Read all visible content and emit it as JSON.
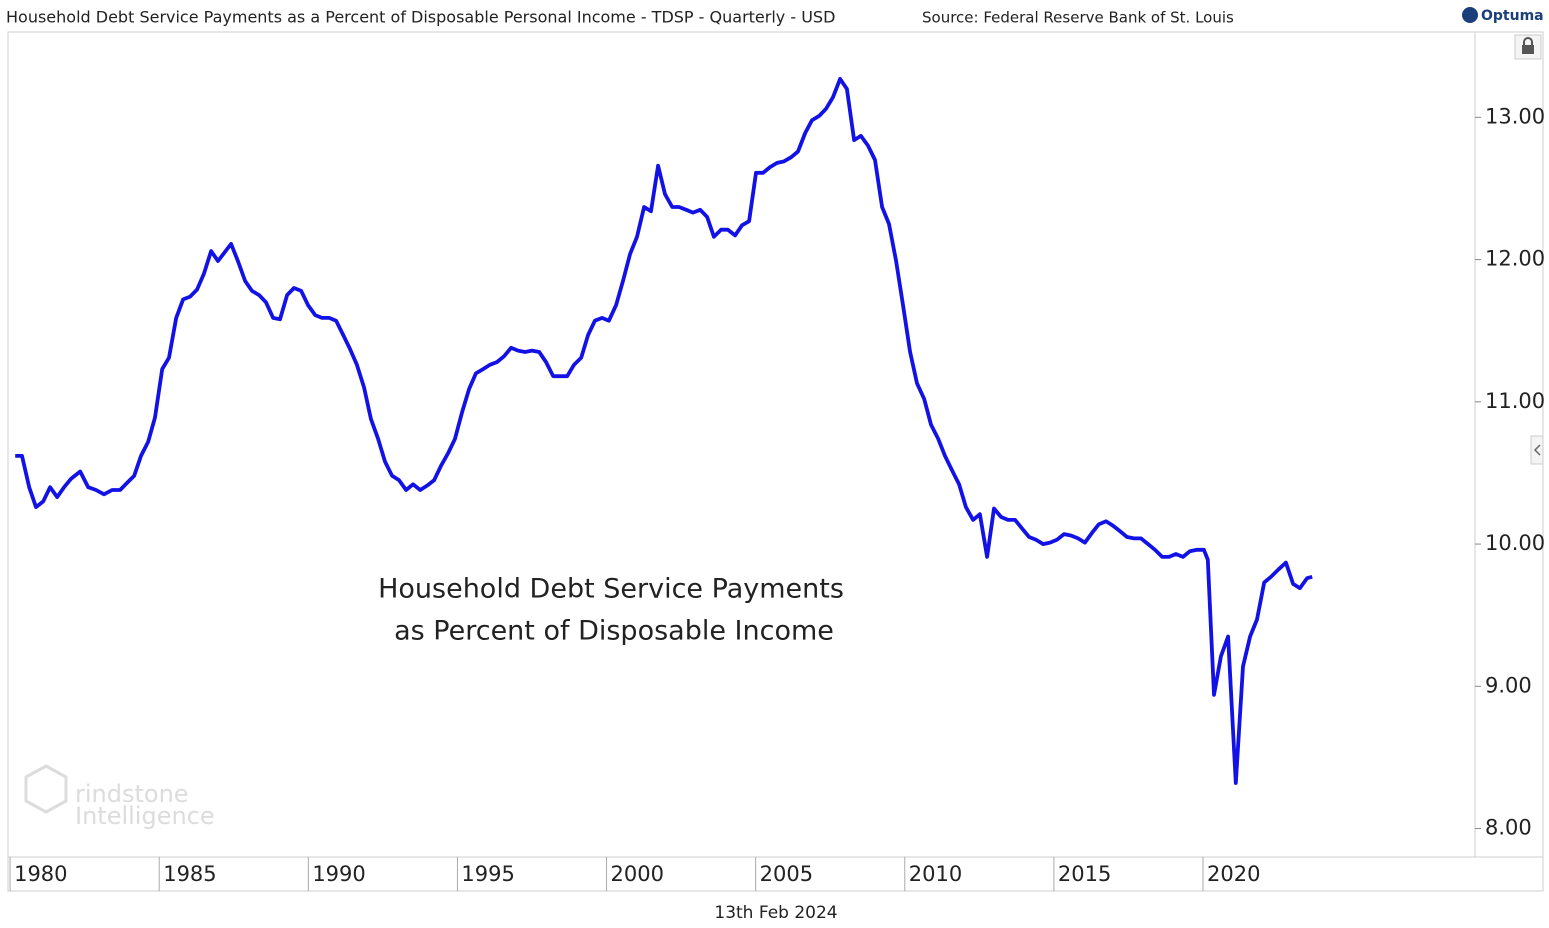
{
  "chart_data": {
    "type": "line",
    "title": "Household Debt Service Payments as a Percent of Disposable Personal Income - TDSP - Quarterly - USD",
    "source": "Source: Federal Reserve Bank of St. Louis",
    "brand": "Optuma",
    "annotation": [
      "Household Debt Service Payments",
      "as Percent of Disposable Income"
    ],
    "watermark": [
      "rindstone",
      "Intelligence"
    ],
    "date_label": "13th Feb 2024",
    "color": "#1212e6",
    "xlim": [
      1979.93,
      2029.12
    ],
    "ylim": [
      7.8,
      13.6
    ],
    "xticks": [
      1980,
      1985,
      1990,
      1995,
      2000,
      2005,
      2010,
      2015,
      2020
    ],
    "yticks": [
      {
        "value": 8,
        "label": "8.00"
      },
      {
        "value": 9,
        "label": "9.00"
      },
      {
        "value": 10,
        "label": "10.00"
      },
      {
        "value": 11,
        "label": "11.00"
      },
      {
        "value": 12,
        "label": "12.00"
      },
      {
        "value": 13,
        "label": "13.00"
      }
    ],
    "x": [
      1980.17,
      1980.4,
      1980.64,
      1980.87,
      1981.11,
      1981.34,
      1981.58,
      1981.81,
      1982.05,
      1982.35,
      1982.62,
      1982.88,
      1983.15,
      1983.42,
      1983.69,
      1983.92,
      1984.16,
      1984.39,
      1984.63,
      1984.86,
      1985.1,
      1985.33,
      1985.57,
      1985.8,
      1986.04,
      1986.27,
      1986.5,
      1986.74,
      1986.97,
      1987.41,
      1987.64,
      1987.88,
      1988.11,
      1988.35,
      1988.58,
      1988.82,
      1989.05,
      1989.29,
      1989.52,
      1989.76,
      1989.99,
      1990.23,
      1990.46,
      1990.7,
      1990.93,
      1991.17,
      1991.4,
      1991.63,
      1991.87,
      1992.1,
      1992.34,
      1992.57,
      1992.81,
      1993.04,
      1993.28,
      1993.51,
      1993.75,
      1993.98,
      1994.22,
      1994.45,
      1994.69,
      1994.92,
      1995.16,
      1995.39,
      1995.62,
      1995.86,
      1996.09,
      1996.33,
      1996.56,
      1996.8,
      1997.03,
      1997.27,
      1997.5,
      1997.74,
      1997.97,
      1998.21,
      1998.44,
      1998.68,
      1998.91,
      1999.15,
      1999.38,
      1999.61,
      1999.85,
      2000.08,
      2000.32,
      2000.55,
      2000.79,
      2001.02,
      2001.26,
      2001.49,
      2001.73,
      2001.96,
      2002.2,
      2002.43,
      2002.67,
      2002.9,
      2003.14,
      2003.37,
      2003.6,
      2003.84,
      2004.07,
      2004.31,
      2004.54,
      2004.78,
      2005.01,
      2005.25,
      2005.48,
      2005.72,
      2005.95,
      2006.19,
      2006.42,
      2006.66,
      2006.89,
      2007.13,
      2007.36,
      2007.59,
      2007.83,
      2008.06,
      2008.3,
      2008.53,
      2008.77,
      2009.0,
      2009.24,
      2009.47,
      2009.71,
      2009.94,
      2010.18,
      2010.41,
      2010.65,
      2010.88,
      2011.12,
      2011.35,
      2011.58,
      2011.82,
      2012.05,
      2012.29,
      2012.52,
      2012.76,
      2012.99,
      2013.23,
      2013.46,
      2013.7,
      2013.93,
      2014.17,
      2014.4,
      2014.64,
      2014.87,
      2015.1,
      2015.34,
      2015.57,
      2015.81,
      2016.04,
      2016.28,
      2016.51,
      2016.75,
      2016.98,
      2017.22,
      2017.45,
      2017.69,
      2017.92,
      2018.16,
      2018.39,
      2018.63,
      2018.86,
      2019.09,
      2019.33,
      2019.56,
      2019.8,
      2020.03,
      2020.16,
      2020.37,
      2020.6,
      2020.84,
      2021.1,
      2021.34,
      2021.58,
      2021.81,
      2022.05,
      2022.28,
      2022.52,
      2022.78,
      2023.02,
      2023.25,
      2023.49,
      2023.66
    ],
    "values": [
      10.62,
      10.62,
      10.4,
      10.26,
      10.3,
      10.4,
      10.33,
      10.4,
      10.46,
      10.51,
      10.4,
      10.38,
      10.35,
      10.38,
      10.38,
      10.43,
      10.48,
      10.62,
      10.72,
      10.89,
      11.23,
      11.31,
      11.59,
      11.72,
      11.74,
      11.79,
      11.9,
      12.06,
      11.99,
      12.11,
      11.99,
      11.85,
      11.78,
      11.75,
      11.7,
      11.59,
      11.58,
      11.75,
      11.8,
      11.78,
      11.68,
      11.61,
      11.59,
      11.59,
      11.57,
      11.47,
      11.37,
      11.26,
      11.1,
      10.88,
      10.74,
      10.58,
      10.48,
      10.45,
      10.38,
      10.42,
      10.38,
      10.41,
      10.45,
      10.55,
      10.64,
      10.74,
      10.93,
      11.09,
      11.2,
      11.23,
      11.26,
      11.28,
      11.32,
      11.38,
      11.36,
      11.35,
      11.36,
      11.35,
      11.28,
      11.18,
      11.18,
      11.18,
      11.26,
      11.31,
      11.47,
      11.57,
      11.59,
      11.57,
      11.68,
      11.85,
      12.04,
      12.16,
      12.37,
      12.34,
      12.66,
      12.46,
      12.37,
      12.37,
      12.35,
      12.33,
      12.35,
      12.3,
      12.16,
      12.21,
      12.21,
      12.17,
      12.24,
      12.27,
      12.61,
      12.61,
      12.65,
      12.68,
      12.69,
      12.72,
      12.76,
      12.89,
      12.98,
      13.01,
      13.06,
      13.14,
      13.27,
      13.2,
      12.84,
      12.87,
      12.8,
      12.7,
      12.37,
      12.25,
      11.99,
      11.68,
      11.35,
      11.13,
      11.02,
      10.84,
      10.74,
      10.62,
      10.52,
      10.42,
      10.26,
      10.17,
      10.21,
      9.91,
      10.25,
      10.19,
      10.17,
      10.17,
      10.11,
      10.05,
      10.03,
      10.0,
      10.01,
      10.03,
      10.07,
      10.06,
      10.04,
      10.01,
      10.08,
      10.14,
      10.16,
      10.13,
      10.09,
      10.05,
      10.04,
      10.04,
      10.0,
      9.96,
      9.91,
      9.91,
      9.93,
      9.91,
      9.95,
      9.96,
      9.96,
      9.89,
      8.94,
      9.21,
      9.35,
      8.32,
      9.14,
      9.35,
      9.47,
      9.73,
      9.77,
      9.82,
      9.87,
      9.72,
      9.69,
      9.76,
      9.77
    ]
  }
}
